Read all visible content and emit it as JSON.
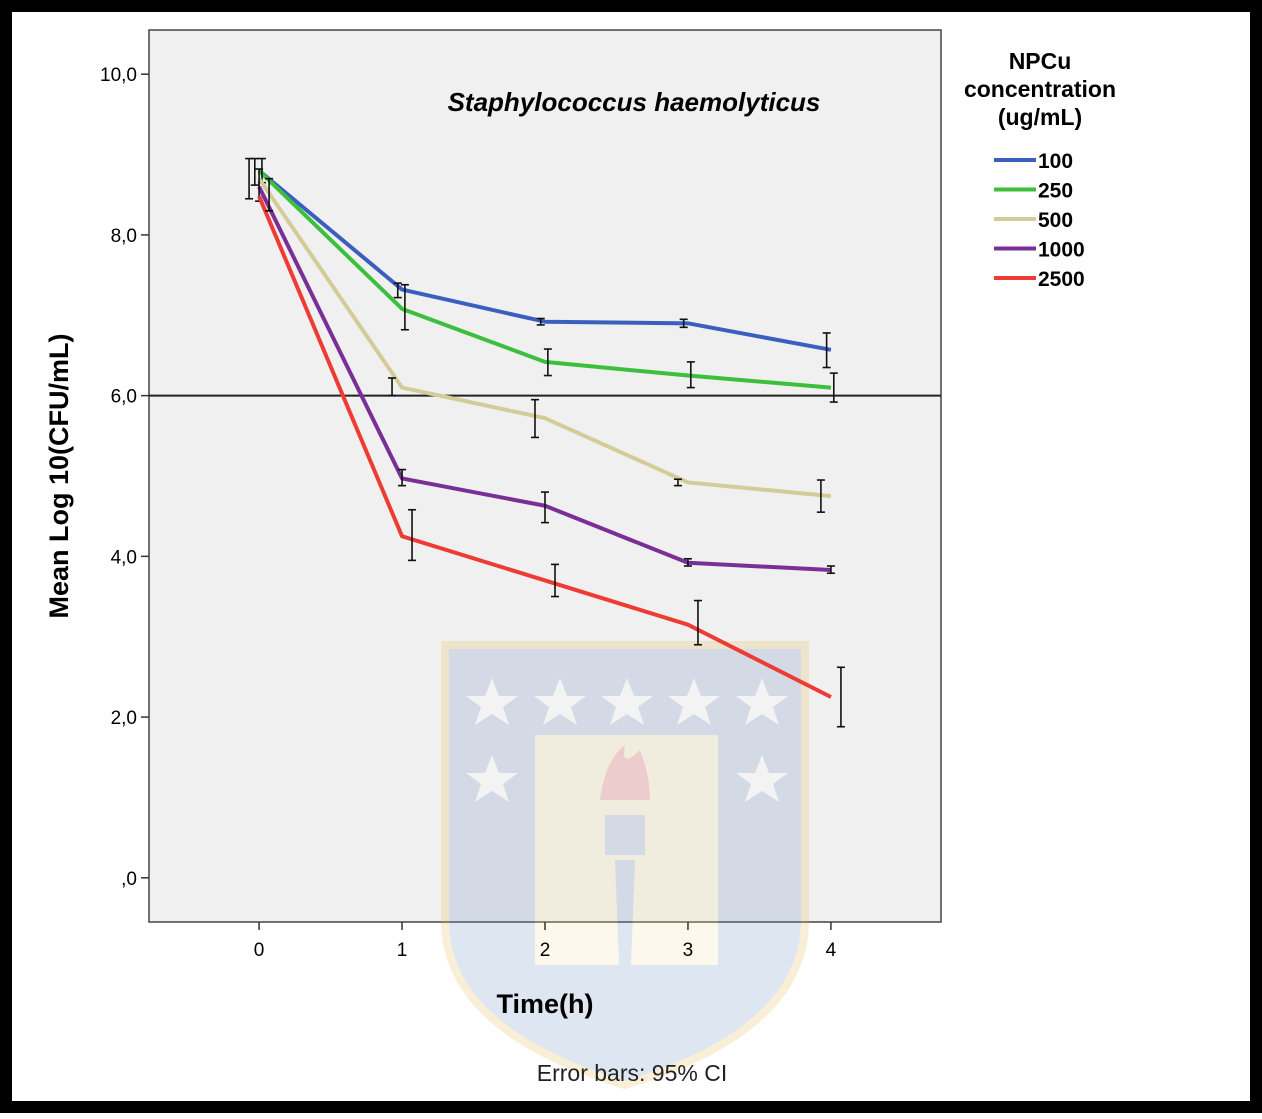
{
  "chart_data": {
    "type": "line",
    "title": "Staphylococcus haemolyticus",
    "xlabel": "Time(h)",
    "ylabel": "Mean Log 10(CFU/mL)",
    "footnote": "Error bars: 95% CI",
    "x": [
      0,
      1,
      2,
      3,
      4
    ],
    "x_tick_labels": [
      "0",
      "1",
      "2",
      "3",
      "4"
    ],
    "xlim": [
      -0.77,
      4.77
    ],
    "ylim": [
      -0.55,
      10.55
    ],
    "y_ticks": [
      0,
      2,
      4,
      6,
      8,
      10
    ],
    "y_tick_labels": [
      ",0",
      "2,0",
      "4,0",
      "6,0",
      "8,0",
      "10,0"
    ],
    "reference_line_y": 6.0,
    "grid": false,
    "background_color": "#f0f0f0",
    "legend": {
      "title": "NPCu concentration (ug/mL)",
      "title_lines": [
        "NPCu",
        "concentration",
        "(ug/mL)"
      ],
      "placement": "right"
    },
    "series": [
      {
        "name": "100",
        "color": "#3a5fbf",
        "values": [
          8.8,
          7.32,
          6.92,
          6.9,
          6.57
        ],
        "errors": [
          [
            8.62,
            8.95
          ],
          [
            7.22,
            7.4
          ],
          [
            6.88,
            6.96
          ],
          [
            6.85,
            6.95
          ],
          [
            6.35,
            6.78
          ]
        ]
      },
      {
        "name": "250",
        "color": "#3cbf3c",
        "values": [
          8.8,
          7.08,
          6.42,
          6.25,
          6.1
        ],
        "errors": [
          [
            8.65,
            8.95
          ],
          [
            6.82,
            7.38
          ],
          [
            6.25,
            6.58
          ],
          [
            6.1,
            6.42
          ],
          [
            5.92,
            6.28
          ]
        ]
      },
      {
        "name": "500",
        "color": "#d4cc98",
        "values": [
          8.7,
          6.1,
          5.72,
          4.92,
          4.75
        ],
        "errors": [
          [
            8.45,
            8.95
          ],
          [
            6.0,
            6.22
          ],
          [
            5.48,
            5.95
          ],
          [
            4.88,
            4.96
          ],
          [
            4.55,
            4.95
          ]
        ]
      },
      {
        "name": "1000",
        "color": "#7a2f96",
        "values": [
          8.6,
          4.97,
          4.63,
          3.92,
          3.83
        ],
        "errors": [
          [
            8.42,
            8.82
          ],
          [
            4.88,
            5.08
          ],
          [
            4.42,
            4.8
          ],
          [
            3.88,
            3.97
          ],
          [
            3.79,
            3.88
          ]
        ]
      },
      {
        "name": "2500",
        "color": "#ee3b33",
        "values": [
          8.48,
          4.25,
          3.7,
          3.15,
          2.25
        ],
        "errors": [
          [
            8.3,
            8.7
          ],
          [
            3.95,
            4.58
          ],
          [
            3.5,
            3.9
          ],
          [
            2.9,
            3.45
          ],
          [
            1.88,
            2.62
          ]
        ]
      }
    ]
  }
}
